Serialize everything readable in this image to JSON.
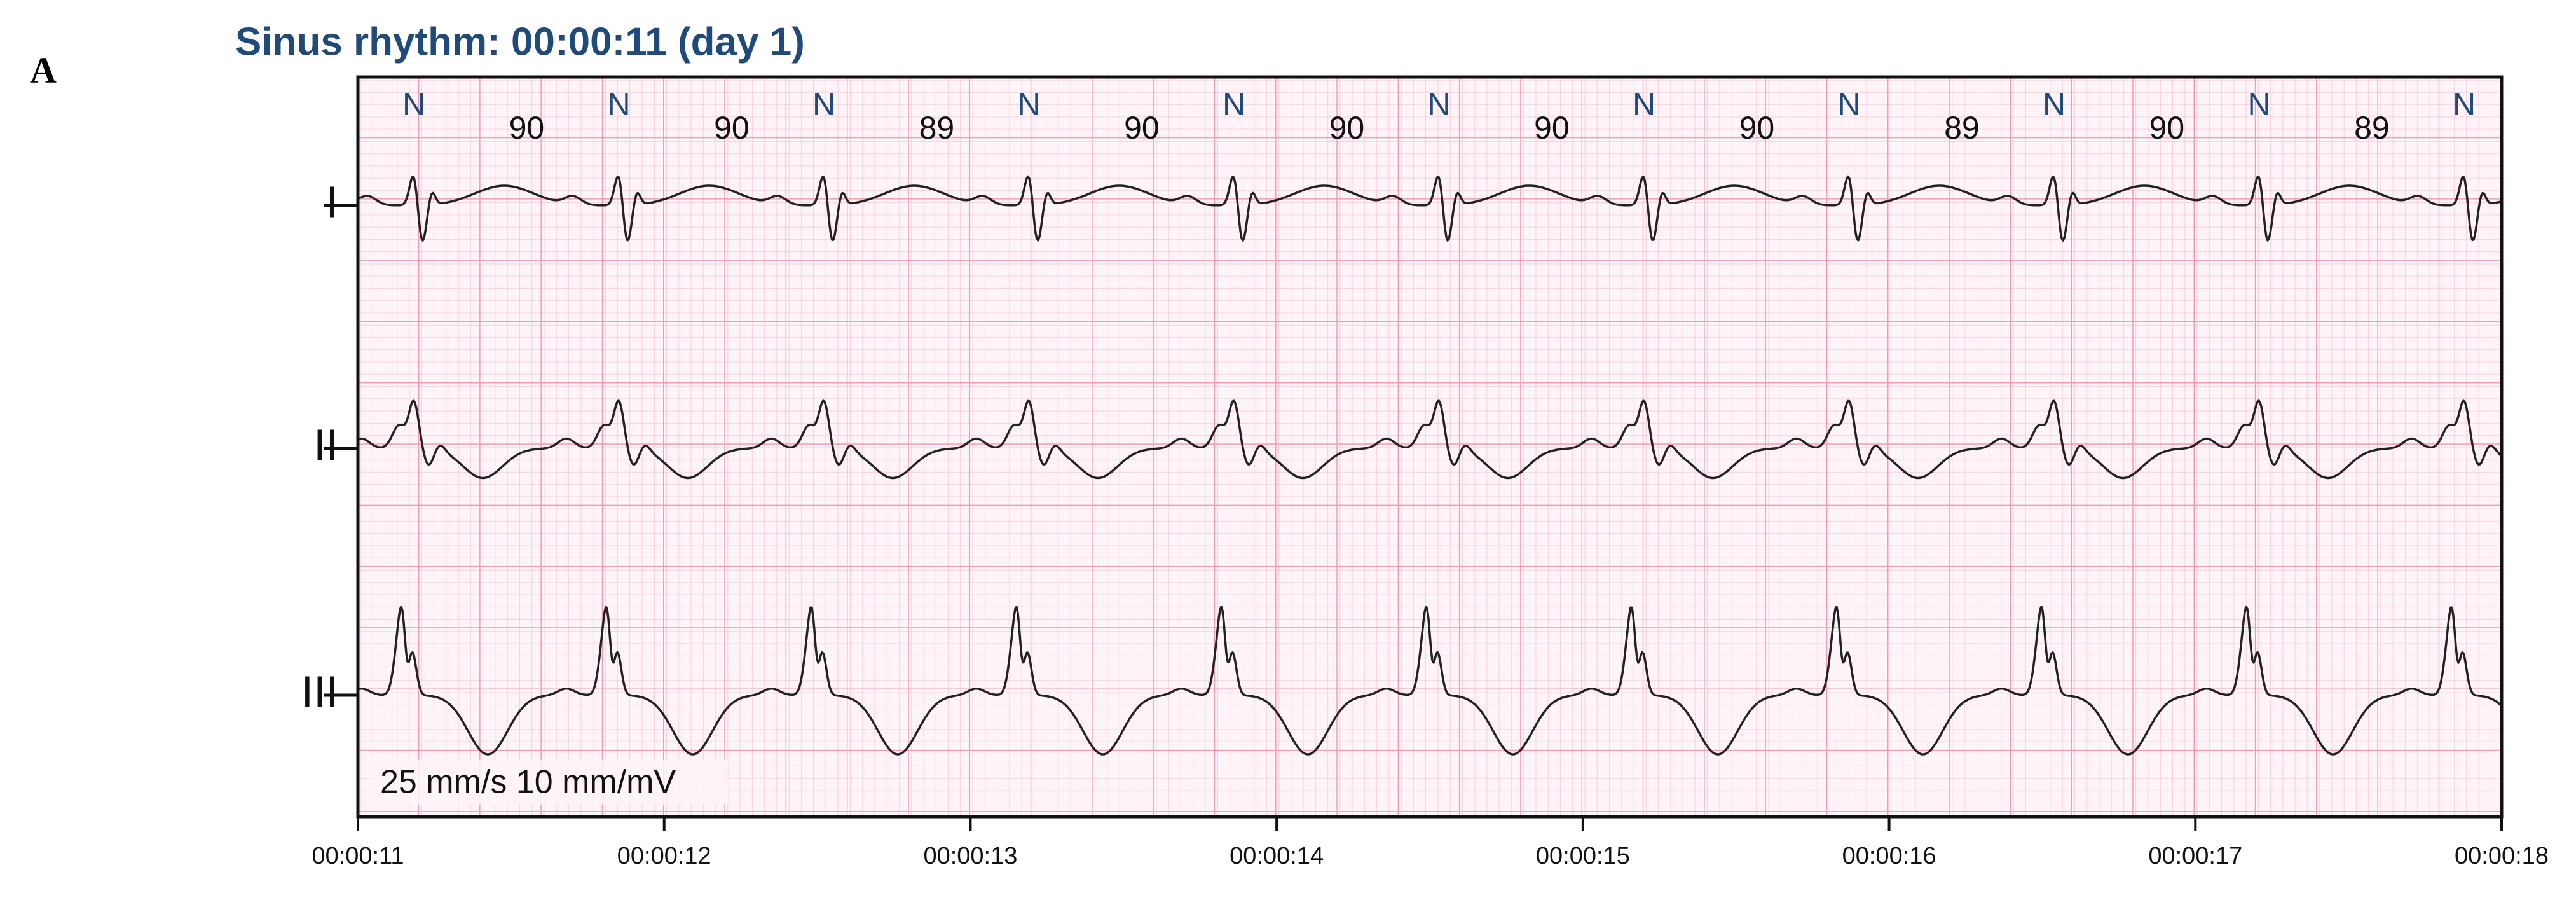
{
  "panel_label": "A",
  "title": "Sinus rhythm: 00:00:11 (day 1)",
  "beats": [
    "N",
    "N",
    "N",
    "N",
    "N",
    "N",
    "N",
    "N",
    "N",
    "N",
    "N"
  ],
  "heart_rates": [
    "90",
    "90",
    "89",
    "90",
    "90",
    "90",
    "90",
    "89",
    "90",
    "89"
  ],
  "leads": [
    "I",
    "II",
    "III"
  ],
  "calibration": "25 mm/s 10 mm/mV",
  "time_axis": [
    "00:00:11",
    "00:00:12",
    "00:00:13",
    "00:00:14",
    "00:00:15",
    "00:00:16",
    "00:00:17",
    "00:00:18"
  ]
}
